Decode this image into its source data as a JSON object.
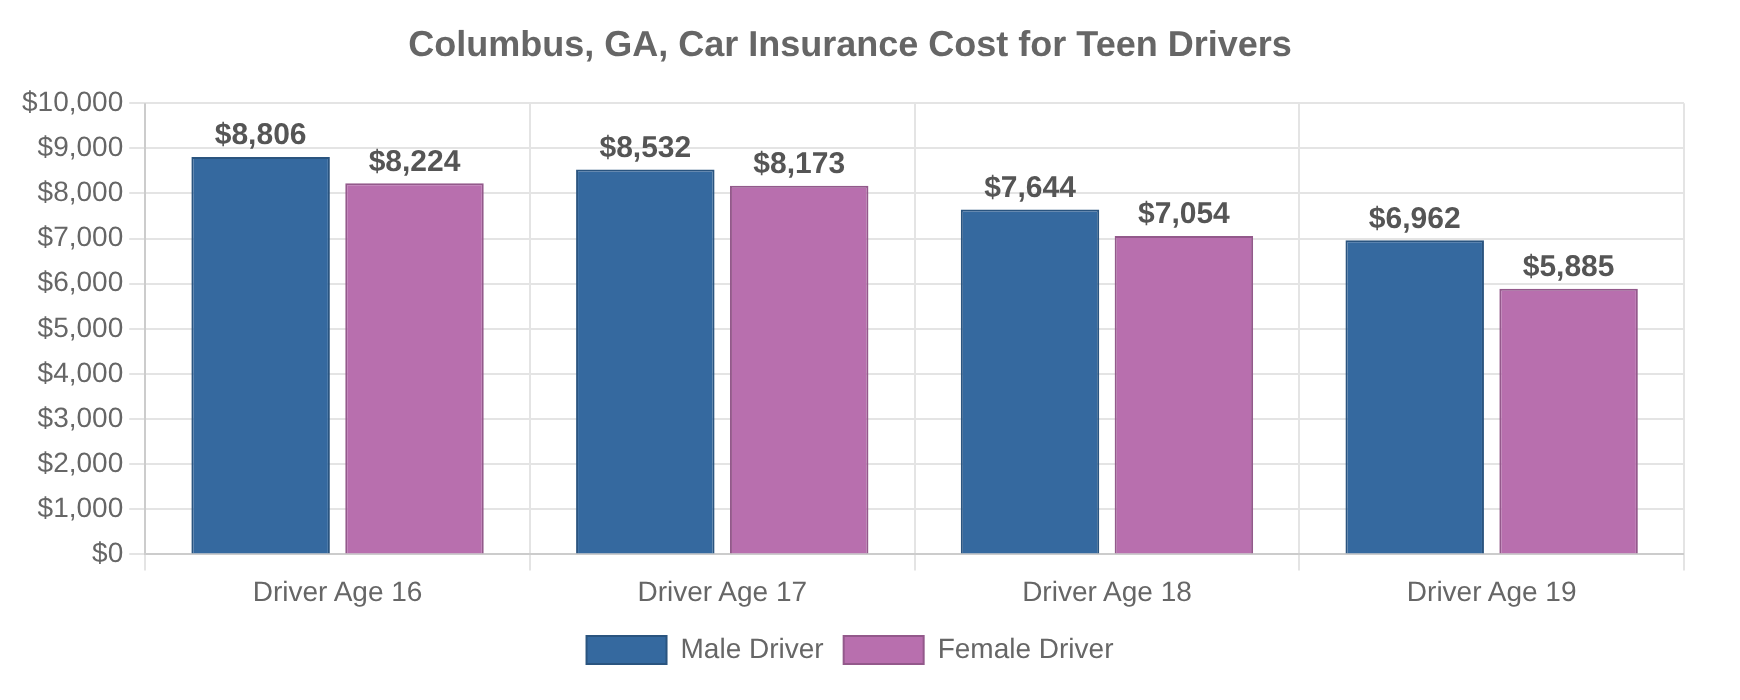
{
  "chart_data": {
    "type": "bar",
    "title": "Columbus, GA, Car Insurance Cost for Teen Drivers",
    "categories": [
      "Driver Age 16",
      "Driver Age 17",
      "Driver Age 18",
      "Driver Age 19"
    ],
    "series": [
      {
        "name": "Male Driver",
        "color": "#35699f",
        "values": [
          8806,
          8532,
          7644,
          6962
        ],
        "value_labels": [
          "$8,806",
          "$8,532",
          "$7,644",
          "$6,962"
        ]
      },
      {
        "name": "Female Driver",
        "color": "#b86fae",
        "values": [
          8224,
          8173,
          7054,
          5885
        ],
        "value_labels": [
          "$8,224",
          "$8,173",
          "$7,054",
          "$5,885"
        ]
      }
    ],
    "ylim": [
      0,
      10000
    ],
    "yticks": [
      {
        "value": 0,
        "label": "$0"
      },
      {
        "value": 1000,
        "label": "$1,000"
      },
      {
        "value": 2000,
        "label": "$2,000"
      },
      {
        "value": 3000,
        "label": "$3,000"
      },
      {
        "value": 4000,
        "label": "$4,000"
      },
      {
        "value": 5000,
        "label": "$5,000"
      },
      {
        "value": 6000,
        "label": "$6,000"
      },
      {
        "value": 7000,
        "label": "$7,000"
      },
      {
        "value": 8000,
        "label": "$8,000"
      },
      {
        "value": 9000,
        "label": "$9,000"
      },
      {
        "value": 10000,
        "label": "$10,000"
      }
    ],
    "grid": true,
    "legend": "bottom"
  }
}
